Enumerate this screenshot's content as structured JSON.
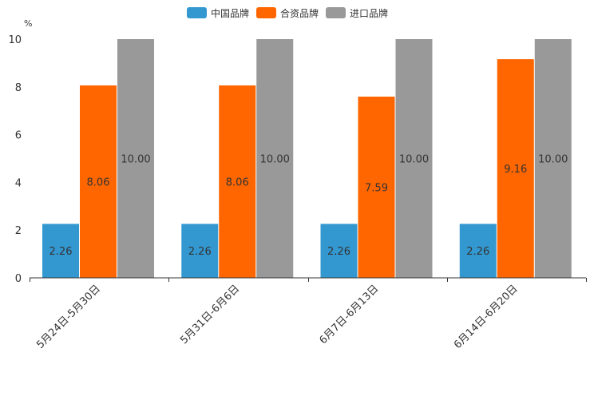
{
  "chart_data": {
    "type": "bar",
    "title": "",
    "xlabel": "",
    "ylabel": "%",
    "ylim": [
      0,
      10
    ],
    "yticks": [
      0,
      2,
      4,
      6,
      8,
      10
    ],
    "categories": [
      "5月24日-5月30日",
      "5月31日-6月6日",
      "6月7日-6月13日",
      "6月14日-6月20日"
    ],
    "series": [
      {
        "name": "中国品牌",
        "color": "#3398d0",
        "values": [
          2.26,
          2.26,
          2.26,
          2.26
        ],
        "labels": [
          "2.26",
          "2.26",
          "2.26",
          "2.26"
        ]
      },
      {
        "name": "合资品牌",
        "color": "#ff6600",
        "values": [
          8.06,
          8.06,
          7.59,
          9.16
        ],
        "labels": [
          "8.06",
          "8.06",
          "7.59",
          "9.16"
        ]
      },
      {
        "name": "进口品牌",
        "color": "#999999",
        "values": [
          10.0,
          10.0,
          10.0,
          10.0
        ],
        "labels": [
          "10.00",
          "10.00",
          "10.00",
          "10.00"
        ]
      }
    ],
    "legend_position": "top-center",
    "grid": false
  }
}
